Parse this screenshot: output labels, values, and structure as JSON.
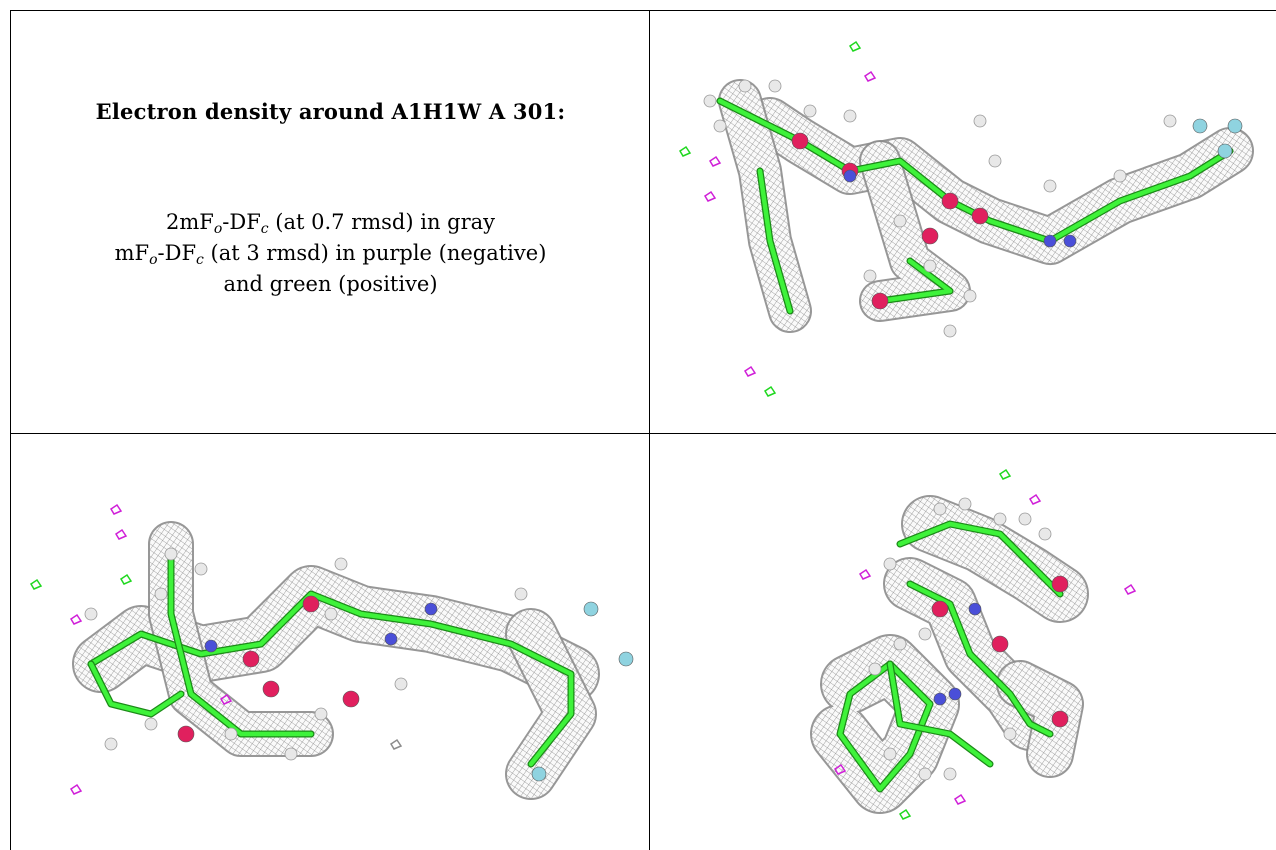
{
  "panel_text": {
    "title": "Electron density around A1H1W A 301:",
    "line1": {
      "a": "2mF",
      "a_sub": "o",
      "b": "-DF",
      "b_sub": "c",
      "rest": " (at 0.7 rmsd) in gray"
    },
    "line2": {
      "a": "mF",
      "a_sub": "o",
      "b": "-DF",
      "b_sub": "c",
      "rest": " (at 3 rmsd) in purple (negative)"
    },
    "line3": "and green (positive)"
  },
  "colors": {
    "carbon": "#3ef23a",
    "nitrogen": "#4a4fd8",
    "oxygen": "#e0205e",
    "fluorine": "#8fd3e0",
    "hydrogen": "#e8e8e8",
    "mesh_gray": "#8c8c8c",
    "density_negative": "#d020d8",
    "density_positive": "#20d820"
  },
  "views": [
    {
      "name": "view-top-right"
    },
    {
      "name": "view-bottom-left"
    },
    {
      "name": "view-bottom-right"
    }
  ]
}
